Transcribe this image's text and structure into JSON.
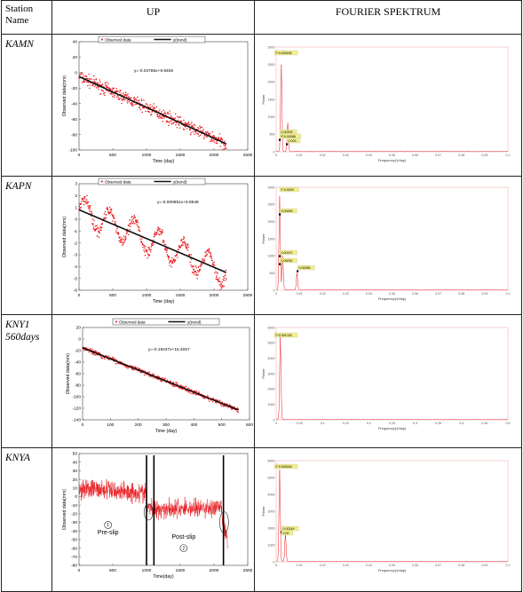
{
  "table": {
    "header": {
      "station": "Station Name",
      "up": "UP",
      "fourier": "FOURIER SPEKTRUM"
    },
    "rows": [
      {
        "station": "KAMN",
        "station_line2": ""
      },
      {
        "station": "KAPN",
        "station_line2": ""
      },
      {
        "station": "KNY1",
        "station_line2": "560days"
      },
      {
        "station": "KNYA",
        "station_line2": ""
      }
    ]
  },
  "colors": {
    "data": "#e8191e",
    "trend": "#111111",
    "highlight": "#f3f08a"
  },
  "chart_data": [
    {
      "type": "scatter",
      "panel": "KAMN-UP",
      "legend": [
        "Observed data",
        "y(trend)"
      ],
      "equation": "y=-0.03786x+9.9406",
      "xlabel": "Time (day)",
      "ylabel": "Observed data(mm)",
      "xlim": [
        0,
        2500
      ],
      "ylim": [
        -100,
        40
      ],
      "xticks": [
        "0",
        "500",
        "1000",
        "1500",
        "2000",
        "2500"
      ],
      "yticks": [
        "40",
        "20",
        "0",
        "-20",
        "-40",
        "-60",
        "-80",
        "-100"
      ],
      "trend": {
        "x": [
          0,
          2180
        ],
        "y": [
          -5,
          -92
        ]
      },
      "x_range": [
        0,
        2180
      ],
      "noise": 10,
      "seasonal": 0
    },
    {
      "type": "line",
      "panel": "KAMN-FOURIER",
      "annotations": [
        "F:0.000436",
        "0.00209",
        "P:0.00088",
        "0.003"
      ],
      "xlabel": "Frequency(1/day)",
      "ylabel": "Power",
      "xlim": [
        0,
        0.1
      ],
      "xticks": [
        "0",
        "0.01",
        "0.02",
        "0.03",
        "0.04",
        "0.05",
        "0.06",
        "0.07",
        "0.08",
        "0.09",
        "0.1"
      ],
      "yticks": [
        "3000",
        "2500",
        "2000",
        "1500",
        "1000",
        "500",
        "0"
      ],
      "peaks": [
        [
          0.0022,
          2.8
        ],
        [
          0.005,
          0.9
        ]
      ]
    },
    {
      "type": "scatter",
      "panel": "KAPN-UP",
      "legend": [
        "Observed data",
        "y(trend)"
      ],
      "equation": "y=-0.000851x+5.8548",
      "xlabel": "Time (day)",
      "ylabel": "Observed data(mm)",
      "xlim": [
        0,
        2500
      ],
      "ylim": [
        -6,
        3
      ],
      "xticks": [
        "0",
        "500",
        "1000",
        "1500",
        "2000",
        "2500"
      ],
      "yticks": [
        "3",
        "2",
        "1",
        "0",
        "-1",
        "-2",
        "-3",
        "-4",
        "-5",
        "-6"
      ],
      "trend": {
        "x": [
          0,
          2180
        ],
        "y": [
          0.8,
          -4.5
        ]
      },
      "x_range": [
        0,
        2180
      ],
      "noise": 0.6,
      "seasonal": 1.1
    },
    {
      "type": "line",
      "panel": "KAPN-FOURIER",
      "annotations": [
        "F:0.0029",
        "0.00499",
        "0.00197",
        "0.00091",
        "0.00085"
      ],
      "xlabel": "Frequency(1/day)",
      "ylabel": "Power",
      "xlim": [
        0,
        0.1
      ],
      "xticks": [
        "0",
        "0.01",
        "0.02",
        "0.03",
        "0.04",
        "0.05",
        "0.06",
        "0.07",
        "0.08",
        "0.09",
        "0.1"
      ],
      "yticks": [
        "3000",
        "2500",
        "2000",
        "1500",
        "1000",
        "500",
        "0"
      ],
      "peaks": [
        [
          0.0015,
          3.0
        ],
        [
          0.0028,
          1.1
        ],
        [
          0.009,
          0.55
        ]
      ]
    },
    {
      "type": "scatter",
      "panel": "KNY1-UP",
      "legend": [
        "Observed data",
        "y(trend)"
      ],
      "equation": "y=-0.19437x+15.4057",
      "xlabel": "Time (day)",
      "ylabel": "Observed data(mm)",
      "xlim": [
        0,
        600
      ],
      "ylim": [
        -140,
        20
      ],
      "xticks": [
        "0",
        "100",
        "200",
        "300",
        "400",
        "500",
        "600"
      ],
      "yticks": [
        "20",
        "0",
        "-20",
        "-40",
        "-60",
        "-80",
        "-100",
        "-120",
        "-140"
      ],
      "trend": {
        "x": [
          0,
          560
        ],
        "y": [
          -15,
          -123
        ]
      },
      "x_range": [
        0,
        560
      ],
      "noise": 5,
      "seasonal": 0
    },
    {
      "type": "line",
      "panel": "KNY1-FOURIER",
      "annotations": [
        "F:0.001783"
      ],
      "xlabel": "Frequency(1/day)",
      "ylabel": "Power",
      "xlim": [
        0,
        0.5
      ],
      "xticks": [
        "0",
        "0.05",
        "0.1",
        "0.15",
        "0.2",
        "0.25",
        "0.3",
        "0.35",
        "0.4",
        "0.45",
        "0.5"
      ],
      "yticks": [
        "6000",
        "5000",
        "4000",
        "3000",
        "2000",
        "1000",
        "0"
      ],
      "peaks": [
        [
          0.009,
          3.0
        ]
      ]
    },
    {
      "type": "line",
      "panel": "KNYA-UP",
      "xlabel": "Time(day)",
      "ylabel": "Observed data(mm)",
      "xlim": [
        0,
        2500
      ],
      "ylim": [
        -80,
        50
      ],
      "xticks": [
        "0",
        "500",
        "1000",
        "1500",
        "2000",
        "2500"
      ],
      "yticks": [
        "50",
        "40",
        "30",
        "20",
        "10",
        "0",
        "-10",
        "-20",
        "-30",
        "-40",
        "-50",
        "-60",
        "-70",
        "-80"
      ],
      "labels": [
        "Pre-slip",
        "Post-slip"
      ],
      "circled": [
        "1",
        "2"
      ],
      "slips_x": [
        1000,
        1110,
        2140
      ],
      "x_range": [
        0,
        2200
      ],
      "noise": 8,
      "seasonal": 0
    },
    {
      "type": "line",
      "panel": "KNYA-FOURIER",
      "annotations": [
        "F:0.000446",
        "0.00249",
        "0.00"
      ],
      "xlabel": "Frequency(1/day)",
      "ylabel": "Power",
      "xlim": [
        0,
        0.1
      ],
      "xticks": [
        "0",
        "0.01",
        "0.02",
        "0.03",
        "0.04",
        "0.05",
        "0.06",
        "0.07",
        "0.08",
        "0.09",
        "0.1"
      ],
      "yticks": [
        "6000",
        "5000",
        "4000",
        "3000",
        "2000",
        "1000",
        "0"
      ],
      "peaks": [
        [
          0.0015,
          3.0
        ],
        [
          0.004,
          0.9
        ]
      ]
    }
  ]
}
